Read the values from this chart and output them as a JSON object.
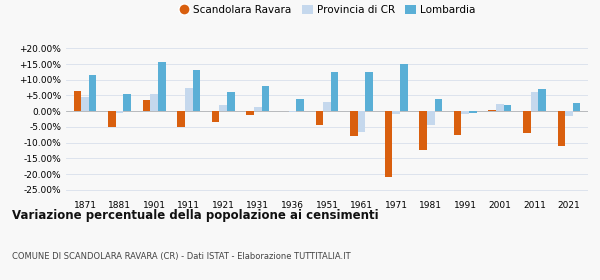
{
  "years": [
    1871,
    1881,
    1901,
    1911,
    1921,
    1931,
    1936,
    1951,
    1961,
    1971,
    1981,
    1991,
    2001,
    2011,
    2021
  ],
  "scandolara": [
    6.5,
    -5.2,
    3.5,
    -5.2,
    -3.5,
    -1.2,
    0.2,
    -4.5,
    -8.0,
    -21.0,
    -12.5,
    -7.5,
    0.5,
    -7.0,
    -11.0
  ],
  "provincia_cr": [
    4.5,
    -0.5,
    5.5,
    7.5,
    2.0,
    1.2,
    -0.3,
    3.0,
    -6.5,
    -1.0,
    -4.5,
    -1.0,
    2.2,
    6.0,
    -1.5
  ],
  "lombardia": [
    11.5,
    5.5,
    15.5,
    13.0,
    6.0,
    8.0,
    4.0,
    12.5,
    12.5,
    15.0,
    4.0,
    -0.5,
    2.0,
    7.0,
    2.5
  ],
  "color_scandolara": "#d95f0e",
  "color_provincia": "#c5d8ed",
  "color_lombardia": "#5aafd6",
  "title": "Variazione percentuale della popolazione ai censimenti",
  "subtitle": "COMUNE DI SCANDOLARA RAVARA (CR) - Dati ISTAT - Elaborazione TUTTITALIA.IT",
  "legend_labels": [
    "Scandolara Ravara",
    "Provincia di CR",
    "Lombardia"
  ],
  "ylim": [
    -27,
    22
  ],
  "yticks": [
    -25,
    -20,
    -15,
    -10,
    -5,
    0,
    5,
    10,
    15,
    20
  ],
  "background_color": "#f8f8f8",
  "grid_color": "#d8e0ec"
}
